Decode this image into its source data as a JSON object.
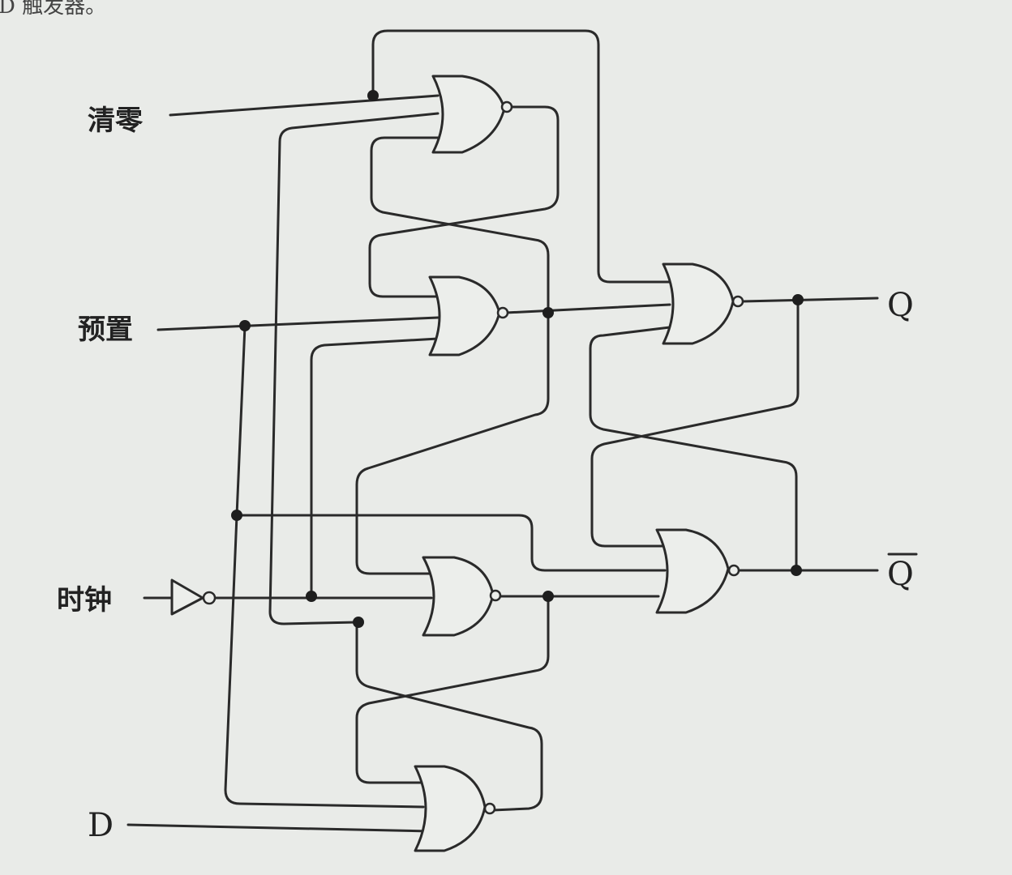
{
  "page_fragment": "D 触发器。",
  "inputs": {
    "clear": "清零",
    "preset": "预置",
    "clock": "时钟",
    "d": "D"
  },
  "outputs": {
    "q": "Q",
    "q_bar": "Q"
  },
  "gates": [
    {
      "id": "G1",
      "type": "NOR"
    },
    {
      "id": "G2",
      "type": "NOR"
    },
    {
      "id": "G3",
      "type": "NOR"
    },
    {
      "id": "G4",
      "type": "NOR"
    },
    {
      "id": "G5",
      "type": "NOR"
    },
    {
      "id": "G6",
      "type": "NOR"
    },
    {
      "id": "clock-inverter",
      "type": "NOT"
    }
  ]
}
